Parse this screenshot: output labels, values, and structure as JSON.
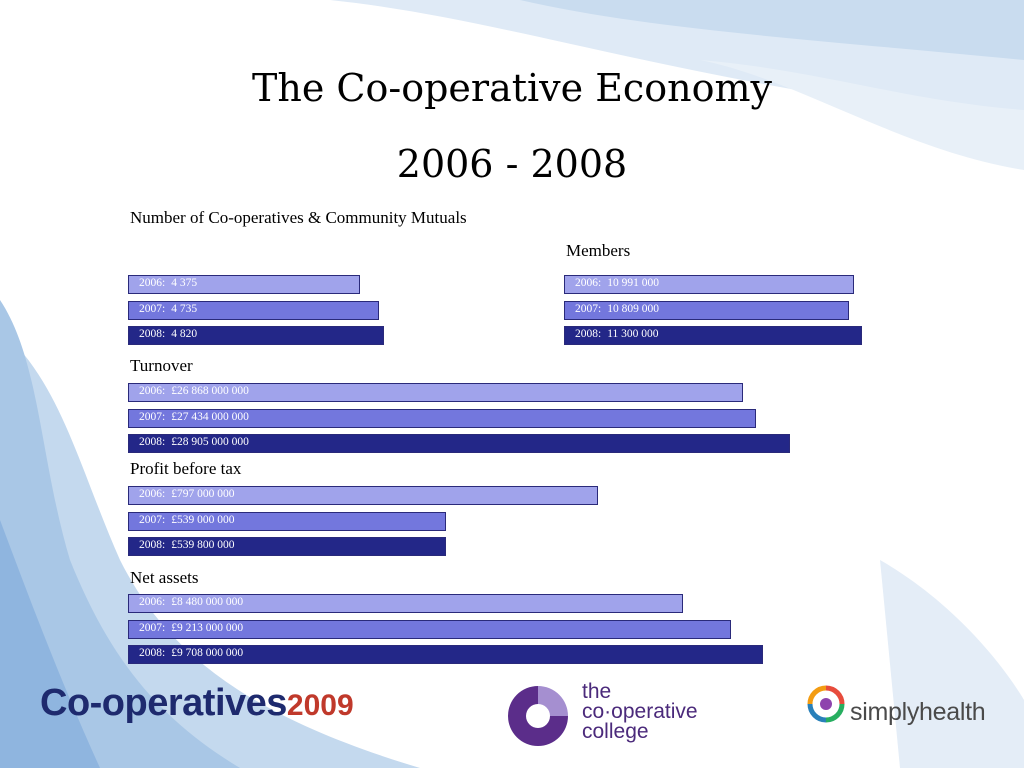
{
  "title": {
    "line1": "The Co-operative Economy",
    "line2": "2006 - 2008"
  },
  "colors": {
    "y2006": "#a0a3eb",
    "y2007": "#7377dd",
    "y2008": "#232788"
  },
  "chart_data": [
    {
      "type": "bar",
      "orientation": "horizontal",
      "title": "Number of Co-operatives & Community Mutuals",
      "categories": [
        "2006",
        "2007",
        "2008"
      ],
      "values": [
        4375,
        4735,
        4820
      ],
      "labels": [
        "4 375",
        "4 735",
        "4 820"
      ]
    },
    {
      "type": "bar",
      "orientation": "horizontal",
      "title": "Members",
      "categories": [
        "2006",
        "2007",
        "2008"
      ],
      "values": [
        10991000,
        10809000,
        11300000
      ],
      "labels": [
        "10 991 000",
        "10 809 000",
        "11 300 000"
      ]
    },
    {
      "type": "bar",
      "orientation": "horizontal",
      "title": "Turnover",
      "categories": [
        "2006",
        "2007",
        "2008"
      ],
      "values": [
        26868000000,
        27434000000,
        28905000000
      ],
      "labels": [
        "£26 868 000 000",
        "£27 434 000 000",
        "£28 905 000 000"
      ]
    },
    {
      "type": "bar",
      "orientation": "horizontal",
      "title": "Profit before tax",
      "categories": [
        "2006",
        "2007",
        "2008"
      ],
      "values": [
        797000000,
        539000000,
        539800000
      ],
      "labels": [
        "£797 000 000",
        "£539 000 000",
        "£539 800 000"
      ]
    },
    {
      "type": "bar",
      "orientation": "horizontal",
      "title": "Net assets",
      "categories": [
        "2006",
        "2007",
        "2008"
      ],
      "values": [
        8480000000,
        9213000000,
        9708000000
      ],
      "labels": [
        "£8 480 000 000",
        "£9 213 000 000",
        "£9 708 000 000"
      ]
    }
  ],
  "logos": {
    "coops2009": {
      "main": "Co-operatives",
      "year": "2009"
    },
    "college": {
      "line1": "the",
      "line2": "co·operative",
      "line3": "college"
    },
    "simplyhealth": {
      "text": "simplyhealth"
    }
  }
}
